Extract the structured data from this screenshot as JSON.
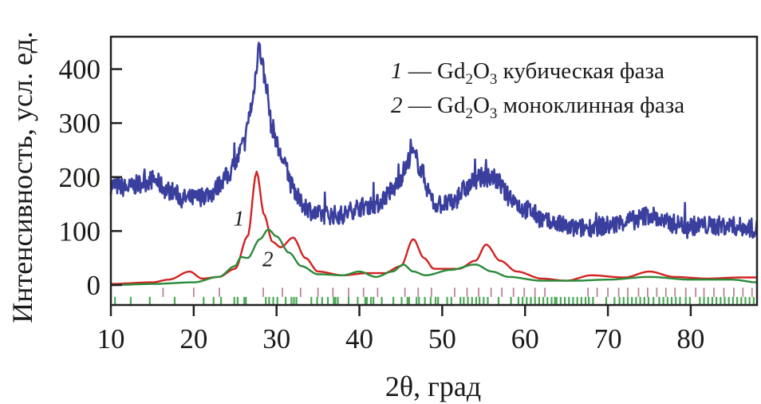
{
  "chart_data": {
    "type": "line",
    "title": "",
    "xlabel": "2θ, град",
    "ylabel": "Интенсивность, усл. ед.",
    "xlim": [
      10,
      88
    ],
    "ylim": [
      -37,
      460
    ],
    "xticks": [
      10,
      20,
      30,
      40,
      50,
      60,
      70,
      80
    ],
    "yticks": [
      0,
      100,
      200,
      300,
      400
    ],
    "grid": false,
    "legend_placement": "top-right",
    "legend": [
      {
        "num": "1",
        "dash": " — ",
        "formula_base": "Gd",
        "sub1": "2",
        "o": "O",
        "sub2": "3",
        "text": " кубическая фаза"
      },
      {
        "num": "2",
        "dash": " — ",
        "formula_base": "Gd",
        "sub1": "2",
        "o": "O",
        "sub2": "3",
        "text": " моноклинная фаза"
      }
    ],
    "series": [
      {
        "color": "#3a3f9e",
        "x": [
          10,
          12,
          14,
          15,
          17,
          19,
          20,
          22,
          24,
          25,
          26,
          27,
          27.5,
          27.8,
          28.2,
          28.6,
          29.5,
          30.5,
          31,
          32,
          33,
          35,
          38,
          40,
          42,
          44,
          45,
          45.5,
          46.3,
          46.8,
          47.5,
          48.5,
          49,
          51,
          53,
          54,
          55,
          56,
          56.5,
          58,
          60,
          63,
          66,
          70,
          73,
          75,
          77,
          80,
          84,
          88
        ],
        "y": [
          185,
          180,
          190,
          195,
          175,
          160,
          160,
          170,
          200,
          225,
          260,
          330,
          390,
          445,
          420,
          380,
          290,
          240,
          220,
          180,
          150,
          130,
          130,
          145,
          150,
          175,
          200,
          215,
          245,
          235,
          210,
          170,
          150,
          150,
          180,
          195,
          200,
          200,
          195,
          165,
          140,
          115,
          105,
          110,
          120,
          130,
          115,
          110,
          110,
          105
        ]
      },
      {
        "label": "1",
        "color": "#d42222",
        "x": [
          10,
          15,
          17,
          19.5,
          21,
          23,
          25,
          26.5,
          27.6,
          28.5,
          29.5,
          30.5,
          32,
          33.5,
          35,
          38,
          41,
          43,
          45,
          46.5,
          47.8,
          49,
          52,
          54,
          55.3,
          57,
          59,
          62,
          65,
          68,
          72,
          75,
          78,
          82,
          86,
          88
        ],
        "y": [
          2,
          5,
          10,
          25,
          12,
          15,
          30,
          90,
          210,
          130,
          80,
          70,
          88,
          50,
          25,
          18,
          22,
          22,
          35,
          85,
          50,
          30,
          30,
          45,
          75,
          45,
          25,
          12,
          8,
          18,
          14,
          25,
          15,
          12,
          14,
          14
        ]
      },
      {
        "label": "2",
        "color": "#2a8a3a",
        "x": [
          10,
          15,
          20,
          23,
          25,
          25.7,
          26.5,
          28,
          29,
          30,
          31.5,
          33,
          35,
          38,
          40,
          42,
          44,
          45.3,
          46.5,
          48,
          51,
          54,
          56,
          58,
          62,
          66,
          70,
          75,
          80,
          85,
          88
        ],
        "y": [
          0,
          2,
          5,
          15,
          35,
          52,
          50,
          85,
          103,
          90,
          60,
          35,
          20,
          18,
          25,
          15,
          25,
          38,
          25,
          18,
          28,
          38,
          25,
          15,
          8,
          8,
          10,
          15,
          10,
          10,
          5
        ]
      }
    ],
    "reference_ticks": [
      {
        "phase": "1",
        "color": "#b0707e",
        "y_range": [
          -5,
          -22
        ],
        "x": [
          16.3,
          20.0,
          23.1,
          28.4,
          30.7,
          32.9,
          35.0,
          36.8,
          38.7,
          40.5,
          42.2,
          45.5,
          47.1,
          48.7,
          51.5,
          53.0,
          54.4,
          55.9,
          57.2,
          58.6,
          59.9,
          61.2,
          62.4,
          67.6,
          68.7,
          70.0,
          71.3,
          72.4,
          73.7,
          74.8,
          75.9,
          77.0,
          78.1,
          79.4,
          80.6,
          81.6,
          82.8,
          84.0,
          85.2,
          86.3,
          87.4
        ]
      },
      {
        "phase": "2",
        "color": "#2f9a3a",
        "y_range": [
          -22,
          -37
        ],
        "x": [
          10.5,
          12.4,
          14.7,
          17.7,
          21.2,
          22.4,
          23.3,
          24.9,
          25.3,
          26.1,
          26.3,
          28.7,
          29.1,
          29.6,
          30.1,
          31.1,
          31.8,
          32.1,
          32.4,
          34.2,
          34.9,
          35.5,
          36.2,
          36.9,
          37.1,
          37.4,
          38.7,
          39.8,
          40.7,
          40.9,
          41.4,
          41.7,
          42.7,
          44.1,
          45.1,
          45.8,
          46.0,
          46.9,
          47.2,
          47.9,
          48.6,
          49.2,
          49.5,
          50.6,
          51.1,
          52.2,
          52.6,
          53.1,
          53.6,
          54.1,
          54.5,
          55.0,
          55.5,
          56.8,
          58.3,
          59.2,
          59.7,
          60.2,
          60.7,
          61.2,
          61.7,
          62.2,
          62.7,
          63.2,
          63.6,
          63.8,
          64.3,
          64.8,
          65.3,
          65.8,
          66.3,
          66.8,
          67.3,
          67.7,
          68.2,
          69.8,
          70.8,
          71.4,
          71.9,
          72.4,
          72.9,
          73.4,
          73.9,
          74.4,
          74.9,
          75.5,
          76.2,
          76.7,
          77.2,
          77.7,
          78.2,
          78.7,
          79.4,
          79.9,
          81.1,
          81.6,
          82.1,
          82.6,
          83.1,
          83.6,
          84.1,
          84.6,
          85.1,
          85.6,
          86.1,
          86.6,
          87.1,
          87.6
        ]
      }
    ],
    "annotations": [
      {
        "text": "1",
        "x": 24.8,
        "y": 110
      },
      {
        "text": "2",
        "x": 28.3,
        "y": 35
      }
    ]
  }
}
